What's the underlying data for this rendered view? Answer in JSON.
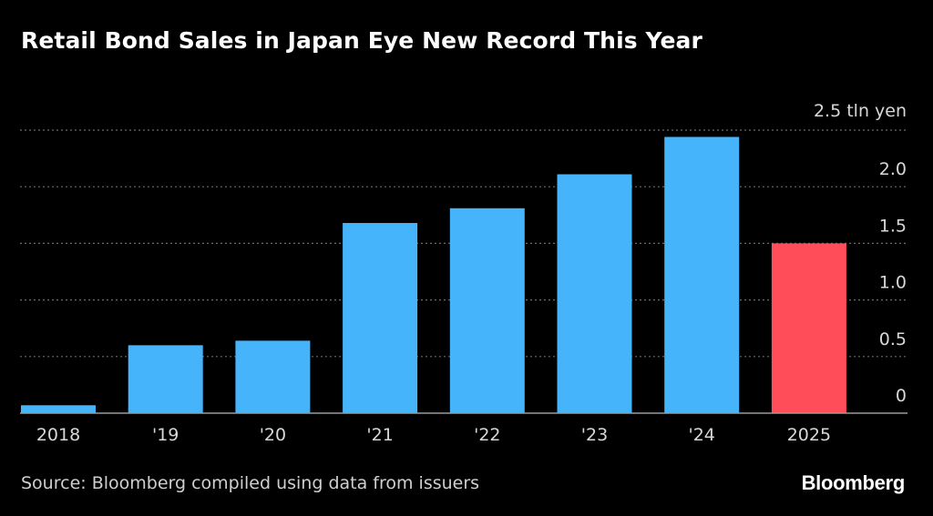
{
  "title": "Retail Bond Sales in Japan Eye New Record This Year",
  "source": "Source: Bloomberg compiled using data from issuers",
  "brand": "Bloomberg",
  "colors": {
    "background": "#000000",
    "bar": "#45b4fa",
    "highlight_bar": "#ff4d5a",
    "gridline": "#6b6b6b",
    "text": "#ffffff"
  },
  "chart_data": {
    "type": "bar",
    "title": "Retail Bond Sales in Japan Eye New Record This Year",
    "categories": [
      "2018",
      "'19",
      "'20",
      "'21",
      "'22",
      "'23",
      "'24",
      "2025"
    ],
    "values": [
      0.07,
      0.6,
      0.64,
      1.68,
      1.81,
      2.11,
      2.44,
      1.5
    ],
    "highlight_index": 7,
    "yunit_label": "2.5 tln yen",
    "ylim": [
      0,
      2.5
    ],
    "yticks": [
      0,
      0.5,
      1.0,
      1.5,
      2.0,
      2.5
    ],
    "ytick_labels": [
      "0",
      "0.5",
      "1.0",
      "1.5",
      "2.0",
      "2.5 tln yen"
    ],
    "grid": true,
    "axis_side": "right"
  }
}
